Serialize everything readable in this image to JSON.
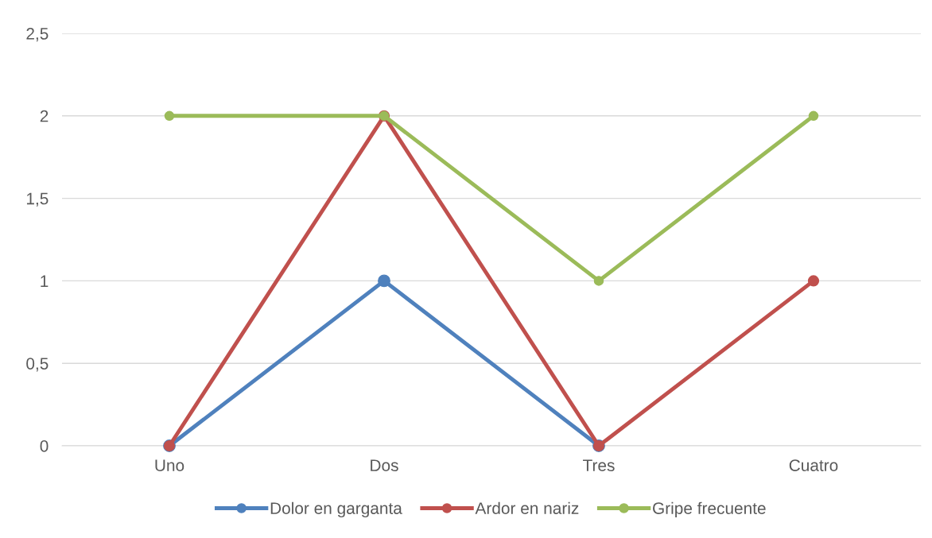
{
  "chart_data": {
    "type": "line",
    "categories": [
      "Uno",
      "Dos",
      "Tres",
      "Cuatro"
    ],
    "series": [
      {
        "name": "Dolor en garganta",
        "color": "#4f81bd",
        "values": [
          0,
          1,
          0,
          null
        ]
      },
      {
        "name": "Ardor en nariz",
        "color": "#c0504d",
        "values": [
          0,
          2,
          0,
          1
        ]
      },
      {
        "name": "Gripe frecuente",
        "color": "#9bbb59",
        "values": [
          2,
          2,
          1,
          2
        ]
      }
    ],
    "ylim": [
      0,
      2.5
    ],
    "yticks": [
      0,
      {
        "value": 0.5,
        "label": "0,5"
      },
      1,
      {
        "value": 1.5,
        "label": "1,5"
      },
      2,
      {
        "value": 2.5,
        "label": "2,5"
      }
    ],
    "grid": "y",
    "legend": "bottom",
    "marker": "circle",
    "line_style": "solid"
  }
}
